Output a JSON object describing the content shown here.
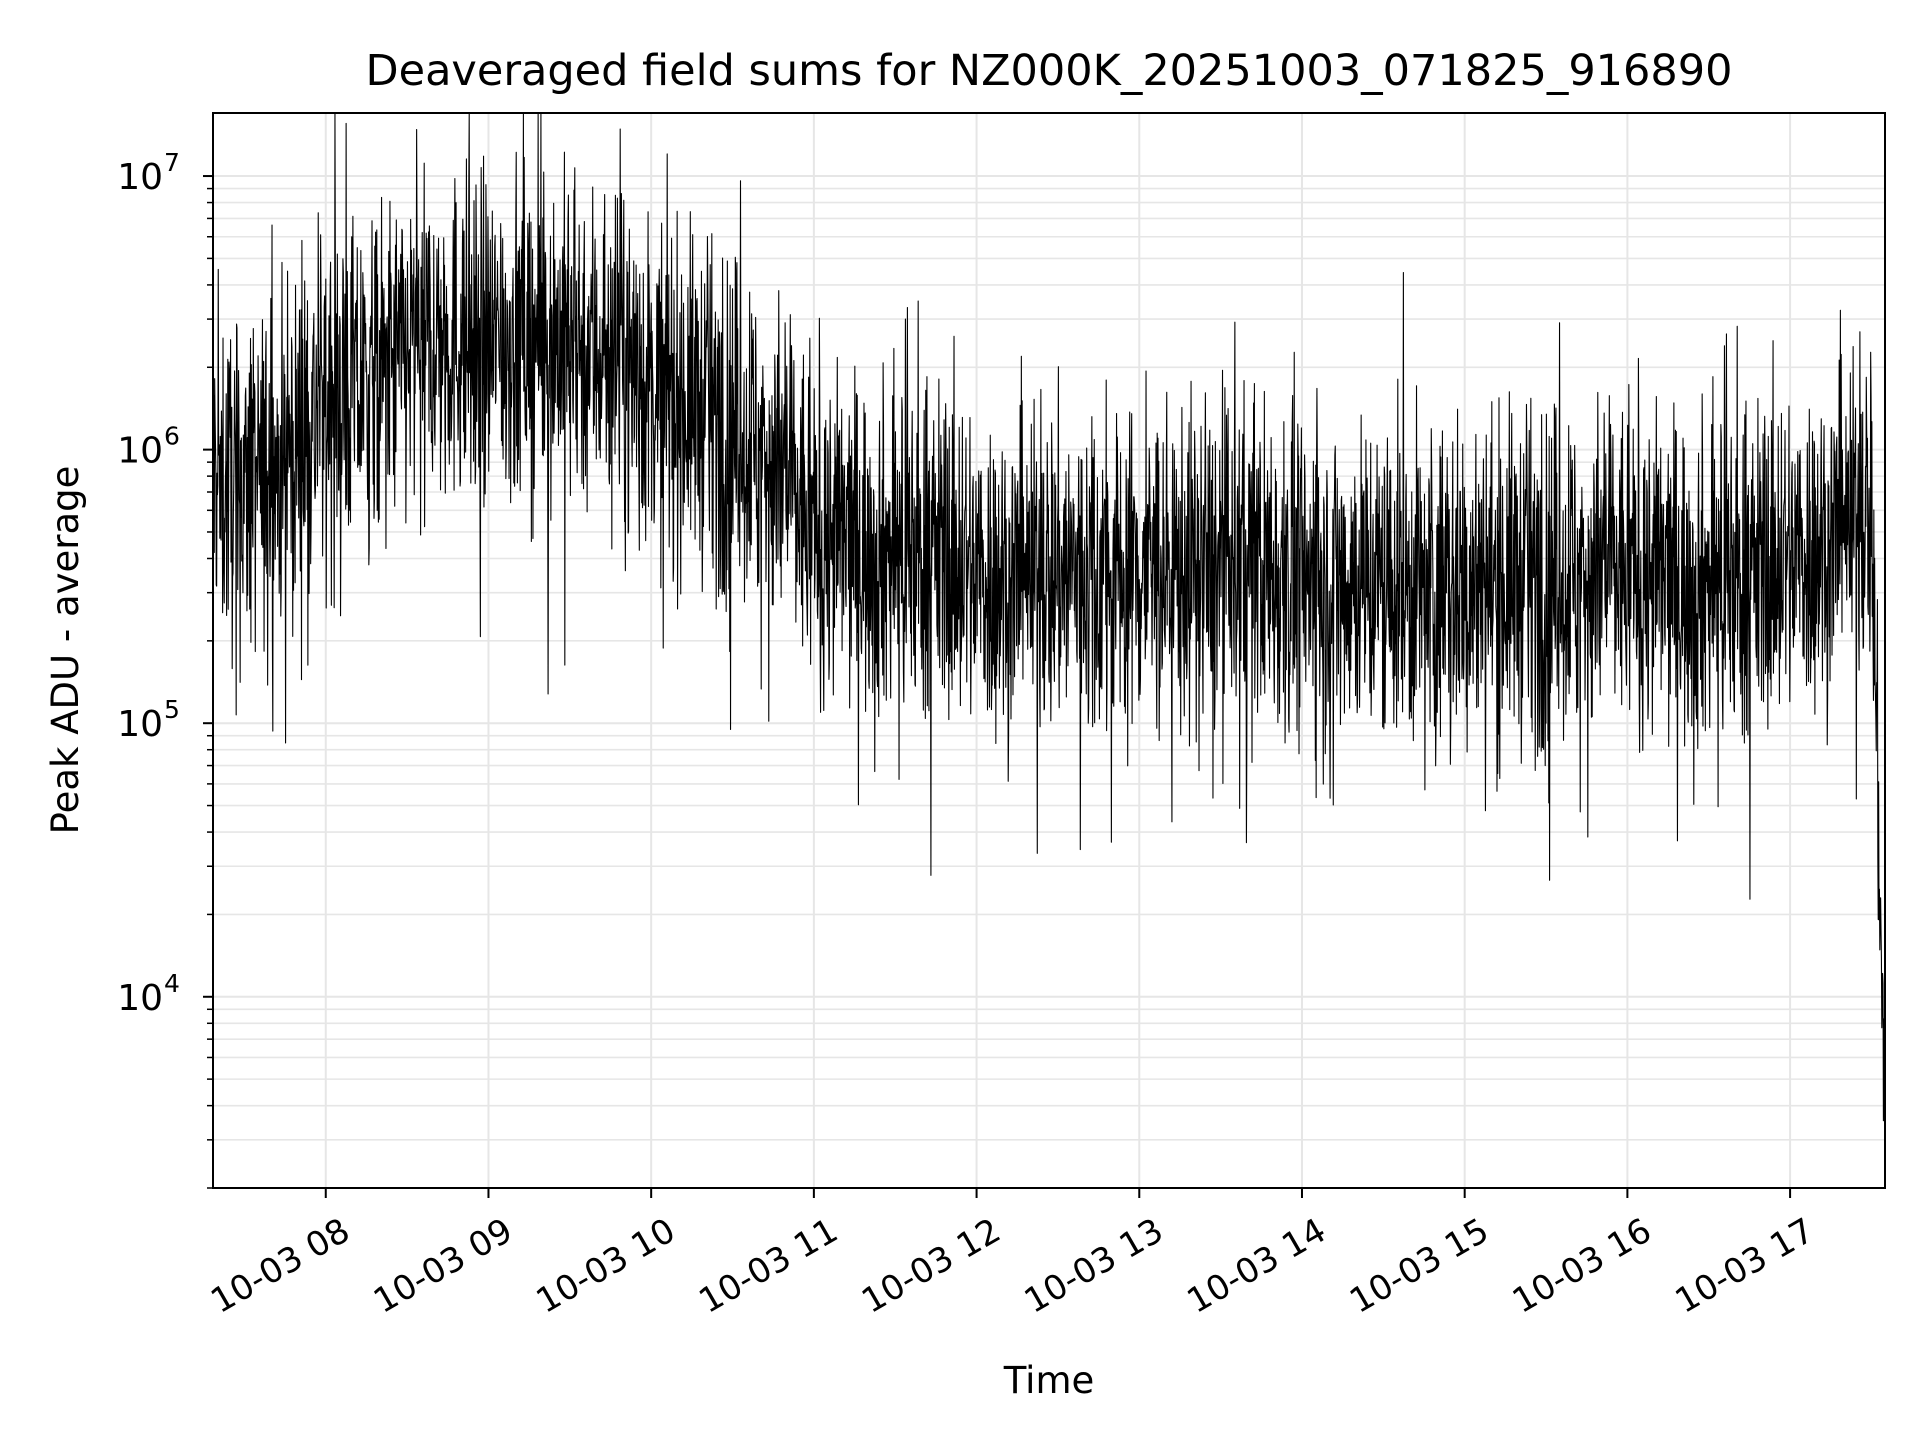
{
  "chart_data": {
    "type": "line",
    "title": "Deaveraged field sums for NZ000K_20251003_071825_916890",
    "xlabel": "Time",
    "ylabel": "Peak ADU - average",
    "yscale": "log",
    "ylim": [
      2000,
      17000000
    ],
    "xlim": [
      "2025-10-03 07:18:25",
      "2025-10-03 17:35:00"
    ],
    "grid": true,
    "x_ticks": [
      {
        "value": "2025-10-03 08:00",
        "label": "10-03 08"
      },
      {
        "value": "2025-10-03 09:00",
        "label": "10-03 09"
      },
      {
        "value": "2025-10-03 10:00",
        "label": "10-03 10"
      },
      {
        "value": "2025-10-03 11:00",
        "label": "10-03 11"
      },
      {
        "value": "2025-10-03 12:00",
        "label": "10-03 12"
      },
      {
        "value": "2025-10-03 13:00",
        "label": "10-03 13"
      },
      {
        "value": "2025-10-03 14:00",
        "label": "10-03 14"
      },
      {
        "value": "2025-10-03 15:00",
        "label": "10-03 15"
      },
      {
        "value": "2025-10-03 16:00",
        "label": "10-03 16"
      },
      {
        "value": "2025-10-03 17:00",
        "label": "10-03 17"
      }
    ],
    "y_ticks": [
      {
        "value": 10000,
        "base": "10",
        "exp": "4"
      },
      {
        "value": 100000,
        "base": "10",
        "exp": "5"
      },
      {
        "value": 1000000,
        "base": "10",
        "exp": "6"
      },
      {
        "value": 10000000,
        "base": "10",
        "exp": "7"
      }
    ],
    "series": [
      {
        "color": "#000000",
        "x": [
          "2025-10-03 07:18",
          "2025-10-03 07:30",
          "2025-10-03 07:45",
          "2025-10-03 08:00",
          "2025-10-03 08:15",
          "2025-10-03 08:30",
          "2025-10-03 08:45",
          "2025-10-03 09:00",
          "2025-10-03 09:15",
          "2025-10-03 09:30",
          "2025-10-03 09:45",
          "2025-10-03 10:00",
          "2025-10-03 10:15",
          "2025-10-03 10:30",
          "2025-10-03 10:45",
          "2025-10-03 11:00",
          "2025-10-03 11:15",
          "2025-10-03 11:30",
          "2025-10-03 11:45",
          "2025-10-03 12:00",
          "2025-10-03 12:15",
          "2025-10-03 12:30",
          "2025-10-03 12:45",
          "2025-10-03 13:00",
          "2025-10-03 13:15",
          "2025-10-03 13:30",
          "2025-10-03 13:45",
          "2025-10-03 14:00",
          "2025-10-03 14:15",
          "2025-10-03 14:30",
          "2025-10-03 14:45",
          "2025-10-03 15:00",
          "2025-10-03 15:15",
          "2025-10-03 15:30",
          "2025-10-03 15:45",
          "2025-10-03 16:00",
          "2025-10-03 16:15",
          "2025-10-03 16:30",
          "2025-10-03 16:45",
          "2025-10-03 17:00",
          "2025-10-03 17:15",
          "2025-10-03 17:25",
          "2025-10-03 17:30",
          "2025-10-03 17:33",
          "2025-10-03 17:35"
        ],
        "y": [
          800000,
          700000,
          900000,
          1500000,
          1700000,
          2200000,
          2600000,
          2400000,
          2600000,
          2500000,
          2300000,
          1700000,
          1500000,
          1200000,
          900000,
          500000,
          450000,
          420000,
          430000,
          350000,
          330000,
          360000,
          350000,
          360000,
          360000,
          370000,
          380000,
          330000,
          350000,
          320000,
          310000,
          320000,
          330000,
          340000,
          350000,
          360000,
          330000,
          330000,
          350000,
          400000,
          460000,
          550000,
          650000,
          30000,
          3000
        ]
      }
    ]
  }
}
